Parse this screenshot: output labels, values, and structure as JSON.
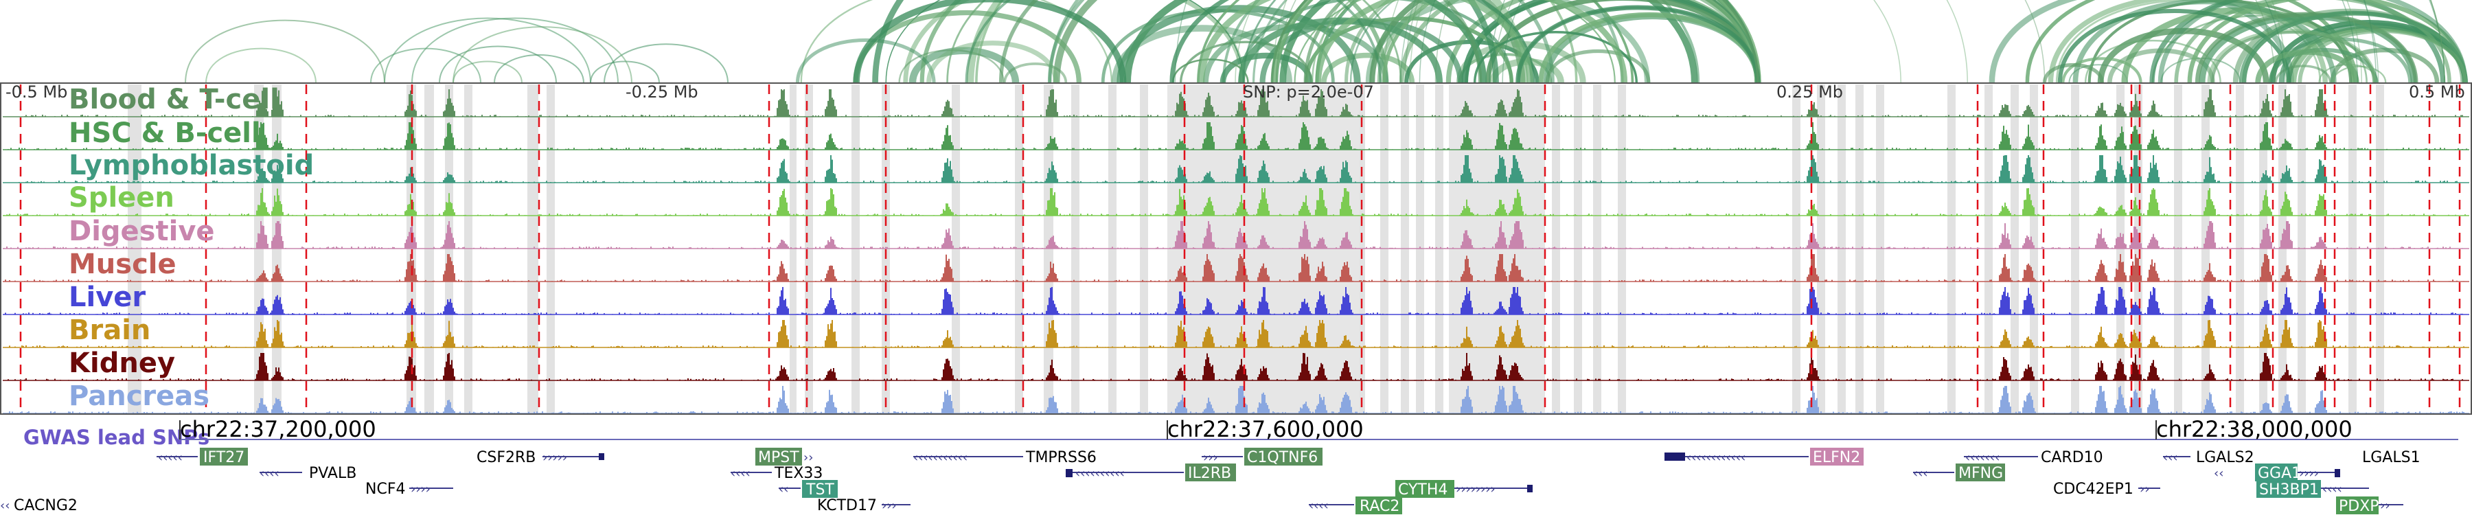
{
  "ruler": {
    "left_label": "-0.5 Mb",
    "q1_label": "-0.25 Mb",
    "center_label": "SNP: p=2.0e-07",
    "q3_label": "0.25 Mb",
    "right_label": "0.5 Mb"
  },
  "tracks": [
    {
      "label": "Blood & T-cell",
      "color": "#5d8f5f"
    },
    {
      "label": "HSC & B-cell",
      "color": "#4e9b54"
    },
    {
      "label": "Lymphoblastoid",
      "color": "#3f9a80"
    },
    {
      "label": "Spleen",
      "color": "#7ccb52"
    },
    {
      "label": "Digestive",
      "color": "#c885ad"
    },
    {
      "label": "Muscle",
      "color": "#c05c55"
    },
    {
      "label": "Liver",
      "color": "#4646d6"
    },
    {
      "label": "Brain",
      "color": "#c4921e"
    },
    {
      "label": "Kidney",
      "color": "#6b0a0a"
    },
    {
      "label": "Pancreas",
      "color": "#8aa7e0"
    }
  ],
  "gwas_label": "GWAS lead SNPs",
  "coordinates": [
    "chr22:37,200,000",
    "chr22:37,600,000",
    "chr22:38,000,000"
  ],
  "genes": [
    {
      "name": "IFT27",
      "highlight": true,
      "color": "#5a8f5c"
    },
    {
      "name": "PVALB",
      "highlight": false
    },
    {
      "name": "NCF4",
      "highlight": false
    },
    {
      "name": "CACNG2",
      "highlight": false
    },
    {
      "name": "CSF2RB",
      "highlight": false
    },
    {
      "name": "MPST",
      "highlight": true,
      "color": "#5a8f5c"
    },
    {
      "name": "TEX33",
      "highlight": false
    },
    {
      "name": "TST",
      "highlight": true,
      "color": "#3f9a80"
    },
    {
      "name": "KCTD17",
      "highlight": false
    },
    {
      "name": "TMPRSS6",
      "highlight": false
    },
    {
      "name": "IL2RB",
      "highlight": true,
      "color": "#5a8f5c"
    },
    {
      "name": "C1QTNF6",
      "highlight": true,
      "color": "#5a8f5c"
    },
    {
      "name": "CYTH4",
      "highlight": true,
      "color": "#4e9b54"
    },
    {
      "name": "RAC2",
      "highlight": true,
      "color": "#4e9b54"
    },
    {
      "name": "ELFN2",
      "highlight": true,
      "color": "#c885ad"
    },
    {
      "name": "MFNG",
      "highlight": true,
      "color": "#5a8f5c"
    },
    {
      "name": "CARD10",
      "highlight": false
    },
    {
      "name": "CDC42EP1",
      "highlight": false
    },
    {
      "name": "LGALS2",
      "highlight": false
    },
    {
      "name": "GGA1",
      "highlight": true,
      "color": "#3f9a80"
    },
    {
      "name": "SH3BP1",
      "highlight": true,
      "color": "#3f9a80"
    },
    {
      "name": "PDXP",
      "highlight": true,
      "color": "#4e9b54"
    },
    {
      "name": "LGALS1",
      "highlight": false
    }
  ]
}
